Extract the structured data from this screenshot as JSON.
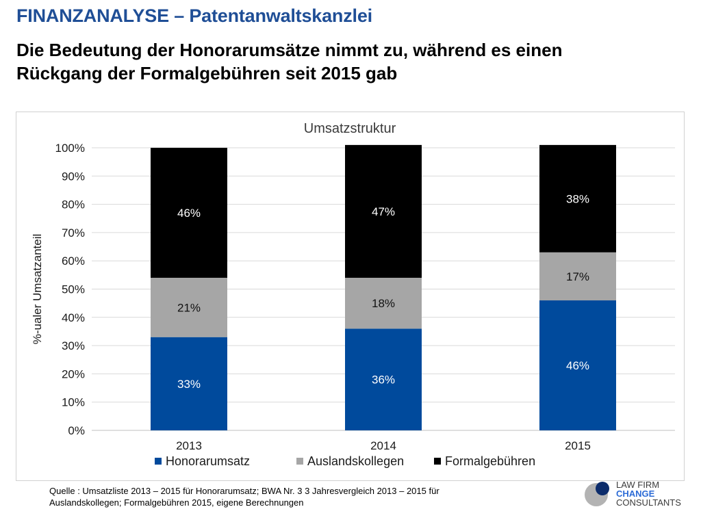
{
  "header": {
    "title": "FINANZANALYSE – Patentanwaltskanzlei",
    "subtitle_line1": "Die Bedeutung der Honorarumsätze nimmt zu, während es einen",
    "subtitle_line2": "Rückgang der Formalgebühren seit 2015 gab"
  },
  "footer": {
    "source_line1": "Quelle : Umsatzliste 2013 – 2015 für Honorarumsatz; BWA Nr. 3 3 Jahresvergleich 2013 – 2015 für",
    "source_line2": "Auslandskollegen; Formalgebühren 2015, eigene Berechnungen"
  },
  "logo": {
    "line1": "LAW FIRM",
    "line2": "CHANGE",
    "line3": "CONSULTANTS"
  },
  "chart_data": {
    "type": "bar",
    "stacked": true,
    "title": "Umsatzstruktur",
    "xlabel": "",
    "ylabel": "%-ualer Umsatzanteil",
    "ylim": [
      0,
      100
    ],
    "yticks": [
      "0%",
      "10%",
      "20%",
      "30%",
      "40%",
      "50%",
      "60%",
      "70%",
      "80%",
      "90%",
      "100%"
    ],
    "categories": [
      "2013",
      "2014",
      "2015"
    ],
    "grid": true,
    "legend_position": "bottom",
    "series": [
      {
        "name": "Honorarumsatz",
        "color": "#004a9c",
        "values": [
          33,
          36,
          46
        ],
        "labels": [
          "33%",
          "36%",
          "46%"
        ]
      },
      {
        "name": "Auslandskollegen",
        "color": "#a6a6a6",
        "values": [
          21,
          18,
          17
        ],
        "labels": [
          "21%",
          "18%",
          "17%"
        ]
      },
      {
        "name": "Formalgebühren",
        "color": "#000000",
        "values": [
          46,
          47,
          38
        ],
        "labels": [
          "46%",
          "47%",
          "38%"
        ]
      }
    ]
  }
}
